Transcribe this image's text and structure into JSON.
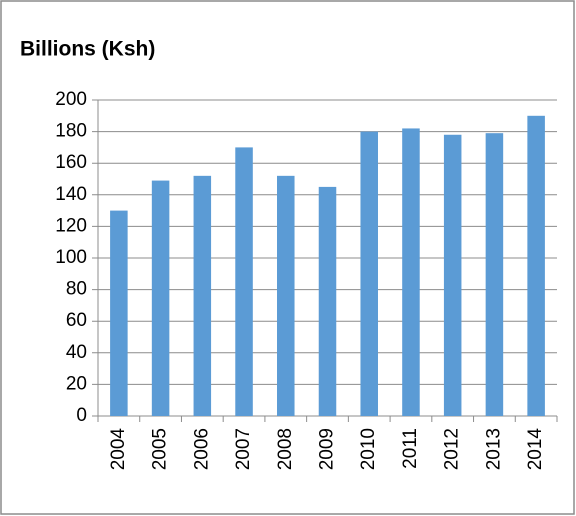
{
  "chart_data": {
    "type": "bar",
    "title": "Billions (Ksh)",
    "categories": [
      "2004",
      "2005",
      "2006",
      "2007",
      "2008",
      "2009",
      "2010",
      "2011",
      "2012",
      "2013",
      "2014"
    ],
    "values": [
      130,
      149,
      152,
      170,
      152,
      145,
      180,
      182,
      178,
      179,
      190
    ],
    "color": "#5b9bd5",
    "ylim": [
      0,
      200
    ],
    "yticks": [
      0,
      20,
      40,
      60,
      80,
      100,
      120,
      140,
      160,
      180,
      200
    ],
    "grid": true
  }
}
